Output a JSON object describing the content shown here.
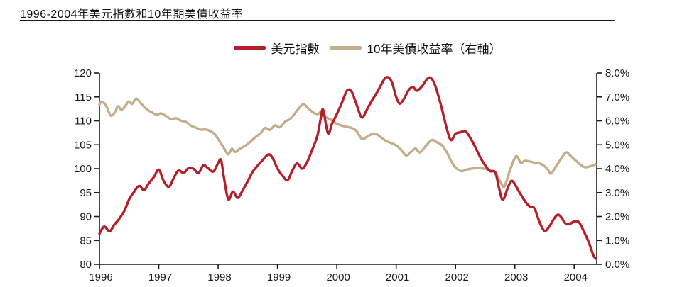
{
  "page": {
    "title": "1996-2004年美元指數和10年期美債收益率"
  },
  "legend": [
    {
      "label": "美元指數",
      "color": "#b41f2a"
    },
    {
      "label": "10年美債收益率（右軸）",
      "color": "#c3ad8d"
    }
  ],
  "chart_data": {
    "type": "line",
    "title": "1996-2004年美元指數和10年期美債收益率",
    "xlabel": "",
    "ylabel_left": "",
    "ylabel_right": "",
    "grid": false,
    "legend_position": "top-center",
    "x_axis": {
      "range": [
        1996,
        2004.38
      ],
      "tick_labels": [
        "1996",
        "1997",
        "1998",
        "1999",
        "2000",
        "2001",
        "2002",
        "2003",
        "2004"
      ],
      "tick_values": [
        1996,
        1997,
        1998,
        1999,
        2000,
        2001,
        2002,
        2003,
        2004
      ]
    },
    "left_axis": {
      "range": [
        80,
        120
      ],
      "tick_labels": [
        "80",
        "85",
        "90",
        "95",
        "100",
        "105",
        "110",
        "115",
        "120"
      ],
      "tick_values": [
        80,
        85,
        90,
        95,
        100,
        105,
        110,
        115,
        120
      ]
    },
    "right_axis": {
      "range": [
        0,
        8
      ],
      "tick_labels": [
        "0.0%",
        "1.0%",
        "2.0%",
        "3.0%",
        "4.0%",
        "5.0%",
        "6.0%",
        "7.0%",
        "8.0%"
      ],
      "tick_values": [
        0,
        1,
        2,
        3,
        4,
        5,
        6,
        7,
        8
      ]
    },
    "series": [
      {
        "name": "美元指數",
        "axis": "left",
        "color": "#b41f2a",
        "points": [
          [
            1996.0,
            86.4
          ],
          [
            1996.08,
            87.9
          ],
          [
            1996.17,
            86.9
          ],
          [
            1996.25,
            88.3
          ],
          [
            1996.33,
            89.5
          ],
          [
            1996.42,
            91.2
          ],
          [
            1996.5,
            93.6
          ],
          [
            1996.58,
            95.1
          ],
          [
            1996.67,
            96.4
          ],
          [
            1996.75,
            95.5
          ],
          [
            1996.83,
            96.9
          ],
          [
            1996.92,
            98.3
          ],
          [
            1997.0,
            99.8
          ],
          [
            1997.08,
            97.5
          ],
          [
            1997.17,
            96.2
          ],
          [
            1997.25,
            98.0
          ],
          [
            1997.33,
            99.6
          ],
          [
            1997.42,
            99.1
          ],
          [
            1997.5,
            100.1
          ],
          [
            1997.58,
            100.0
          ],
          [
            1997.67,
            99.1
          ],
          [
            1997.75,
            100.7
          ],
          [
            1997.83,
            100.1
          ],
          [
            1997.92,
            99.4
          ],
          [
            1998.0,
            101.2
          ],
          [
            1998.05,
            101.8
          ],
          [
            1998.1,
            98.0
          ],
          [
            1998.17,
            93.6
          ],
          [
            1998.25,
            95.2
          ],
          [
            1998.33,
            93.9
          ],
          [
            1998.42,
            95.6
          ],
          [
            1998.5,
            97.4
          ],
          [
            1998.58,
            99.3
          ],
          [
            1998.67,
            100.7
          ],
          [
            1998.75,
            101.8
          ],
          [
            1998.85,
            103.0
          ],
          [
            1998.92,
            102.2
          ],
          [
            1999.0,
            100.0
          ],
          [
            1999.08,
            98.6
          ],
          [
            1999.17,
            97.6
          ],
          [
            1999.25,
            99.6
          ],
          [
            1999.33,
            101.1
          ],
          [
            1999.42,
            100.0
          ],
          [
            1999.5,
            101.4
          ],
          [
            1999.58,
            103.8
          ],
          [
            1999.67,
            106.8
          ],
          [
            1999.73,
            110.6
          ],
          [
            1999.77,
            112.3
          ],
          [
            1999.85,
            107.4
          ],
          [
            1999.92,
            109.4
          ],
          [
            2000.0,
            111.4
          ],
          [
            2000.08,
            113.6
          ],
          [
            2000.17,
            116.3
          ],
          [
            2000.25,
            116.1
          ],
          [
            2000.33,
            113.5
          ],
          [
            2000.42,
            110.7
          ],
          [
            2000.5,
            112.2
          ],
          [
            2000.58,
            114.0
          ],
          [
            2000.67,
            115.8
          ],
          [
            2000.75,
            117.6
          ],
          [
            2000.83,
            119.1
          ],
          [
            2000.92,
            118.3
          ],
          [
            2001.0,
            115.0
          ],
          [
            2001.06,
            113.6
          ],
          [
            2001.13,
            114.6
          ],
          [
            2001.21,
            116.4
          ],
          [
            2001.28,
            117.1
          ],
          [
            2001.35,
            116.3
          ],
          [
            2001.44,
            117.3
          ],
          [
            2001.52,
            118.7
          ],
          [
            2001.58,
            119.0
          ],
          [
            2001.65,
            117.6
          ],
          [
            2001.75,
            113.5
          ],
          [
            2001.84,
            109.0
          ],
          [
            2001.92,
            106.0
          ],
          [
            2002.0,
            107.3
          ],
          [
            2002.08,
            107.6
          ],
          [
            2002.17,
            107.8
          ],
          [
            2002.25,
            106.4
          ],
          [
            2002.33,
            104.6
          ],
          [
            2002.42,
            102.3
          ],
          [
            2002.5,
            100.7
          ],
          [
            2002.58,
            99.5
          ],
          [
            2002.67,
            99.2
          ],
          [
            2002.74,
            95.6
          ],
          [
            2002.8,
            93.5
          ],
          [
            2002.89,
            96.3
          ],
          [
            2002.96,
            97.4
          ],
          [
            2003.08,
            95.0
          ],
          [
            2003.17,
            93.2
          ],
          [
            2003.25,
            92.1
          ],
          [
            2003.33,
            91.7
          ],
          [
            2003.42,
            88.7
          ],
          [
            2003.5,
            87.0
          ],
          [
            2003.58,
            87.9
          ],
          [
            2003.67,
            89.7
          ],
          [
            2003.73,
            90.4
          ],
          [
            2003.79,
            89.7
          ],
          [
            2003.85,
            88.6
          ],
          [
            2003.92,
            88.4
          ],
          [
            2004.0,
            89.0
          ],
          [
            2004.08,
            88.8
          ],
          [
            2004.15,
            87.2
          ],
          [
            2004.24,
            84.8
          ],
          [
            2004.32,
            82.0
          ],
          [
            2004.36,
            81.2
          ]
        ]
      },
      {
        "name": "10年美債收益率（右軸）",
        "axis": "right",
        "color": "#c3ad8d",
        "points": [
          [
            1996.0,
            6.68
          ],
          [
            1996.04,
            6.81
          ],
          [
            1996.12,
            6.6
          ],
          [
            1996.19,
            6.22
          ],
          [
            1996.27,
            6.4
          ],
          [
            1996.31,
            6.61
          ],
          [
            1996.37,
            6.46
          ],
          [
            1996.43,
            6.6
          ],
          [
            1996.49,
            6.81
          ],
          [
            1996.55,
            6.71
          ],
          [
            1996.62,
            6.93
          ],
          [
            1996.71,
            6.7
          ],
          [
            1996.79,
            6.5
          ],
          [
            1996.87,
            6.37
          ],
          [
            1996.96,
            6.26
          ],
          [
            1997.04,
            6.31
          ],
          [
            1997.12,
            6.2
          ],
          [
            1997.21,
            6.07
          ],
          [
            1997.29,
            6.11
          ],
          [
            1997.37,
            6.01
          ],
          [
            1997.46,
            5.95
          ],
          [
            1997.54,
            5.8
          ],
          [
            1997.62,
            5.72
          ],
          [
            1997.71,
            5.63
          ],
          [
            1997.79,
            5.64
          ],
          [
            1997.87,
            5.57
          ],
          [
            1997.95,
            5.42
          ],
          [
            1998.03,
            5.12
          ],
          [
            1998.1,
            4.85
          ],
          [
            1998.17,
            4.6
          ],
          [
            1998.23,
            4.83
          ],
          [
            1998.29,
            4.7
          ],
          [
            1998.37,
            4.84
          ],
          [
            1998.46,
            4.96
          ],
          [
            1998.54,
            5.12
          ],
          [
            1998.62,
            5.3
          ],
          [
            1998.71,
            5.47
          ],
          [
            1998.79,
            5.7
          ],
          [
            1998.87,
            5.62
          ],
          [
            1998.96,
            5.81
          ],
          [
            1999.04,
            5.73
          ],
          [
            1999.13,
            5.97
          ],
          [
            1999.21,
            6.07
          ],
          [
            1999.29,
            6.3
          ],
          [
            1999.37,
            6.55
          ],
          [
            1999.44,
            6.7
          ],
          [
            1999.52,
            6.52
          ],
          [
            1999.6,
            6.35
          ],
          [
            1999.68,
            6.28
          ],
          [
            1999.75,
            6.4
          ],
          [
            1999.82,
            6.15
          ],
          [
            1999.9,
            6.05
          ],
          [
            1999.98,
            5.9
          ],
          [
            2000.06,
            5.82
          ],
          [
            2000.15,
            5.76
          ],
          [
            2000.25,
            5.7
          ],
          [
            2000.33,
            5.58
          ],
          [
            2000.42,
            5.25
          ],
          [
            2000.5,
            5.32
          ],
          [
            2000.58,
            5.43
          ],
          [
            2000.66,
            5.45
          ],
          [
            2000.75,
            5.3
          ],
          [
            2000.83,
            5.16
          ],
          [
            2000.92,
            5.07
          ],
          [
            2001.0,
            4.97
          ],
          [
            2001.08,
            4.8
          ],
          [
            2001.17,
            4.55
          ],
          [
            2001.27,
            4.75
          ],
          [
            2001.33,
            4.84
          ],
          [
            2001.4,
            4.68
          ],
          [
            2001.5,
            4.95
          ],
          [
            2001.6,
            5.2
          ],
          [
            2001.69,
            5.1
          ],
          [
            2001.77,
            4.98
          ],
          [
            2001.85,
            4.7
          ],
          [
            2001.92,
            4.35
          ],
          [
            2002.0,
            4.05
          ],
          [
            2002.1,
            3.9
          ],
          [
            2002.19,
            3.96
          ],
          [
            2002.29,
            4.01
          ],
          [
            2002.4,
            4.02
          ],
          [
            2002.5,
            3.99
          ],
          [
            2002.6,
            3.92
          ],
          [
            2002.68,
            3.8
          ],
          [
            2002.79,
            3.3
          ],
          [
            2002.83,
            3.28
          ],
          [
            2002.92,
            3.95
          ],
          [
            2003.0,
            4.45
          ],
          [
            2003.04,
            4.5
          ],
          [
            2003.1,
            4.25
          ],
          [
            2003.17,
            4.33
          ],
          [
            2003.25,
            4.3
          ],
          [
            2003.33,
            4.25
          ],
          [
            2003.42,
            4.22
          ],
          [
            2003.5,
            4.1
          ],
          [
            2003.56,
            3.95
          ],
          [
            2003.61,
            3.8
          ],
          [
            2003.7,
            4.12
          ],
          [
            2003.78,
            4.42
          ],
          [
            2003.86,
            4.68
          ],
          [
            2003.93,
            4.56
          ],
          [
            2004.02,
            4.35
          ],
          [
            2004.1,
            4.18
          ],
          [
            2004.18,
            4.06
          ],
          [
            2004.27,
            4.1
          ],
          [
            2004.36,
            4.18
          ]
        ]
      }
    ]
  },
  "colors": {
    "axis": "#1a1a1a",
    "text": "#111111",
    "background": "#ffffff",
    "usd_index": "#b41f2a",
    "treasury_yield": "#c3ad8d"
  }
}
